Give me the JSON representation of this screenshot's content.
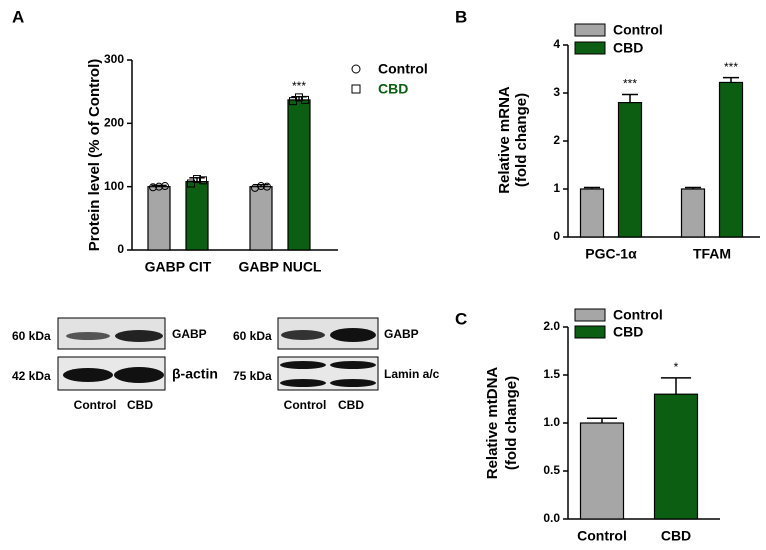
{
  "chart_data": [
    {
      "type": "bar",
      "panel": "A",
      "ylabel": [
        "Protein level (% of Control)"
      ],
      "categories": [
        "GABP CIT",
        "GABP NUCL"
      ],
      "series": [
        {
          "name": "Control",
          "color": "#a6a6a6",
          "marker": "circle",
          "values": [
            100,
            100
          ],
          "errors": [
            2,
            3
          ],
          "points": [
            [
              99,
              100,
              101
            ],
            [
              98,
              101,
              100
            ]
          ]
        },
        {
          "name": "CBD",
          "color": "#0b5e12",
          "marker": "square",
          "values": [
            108,
            237
          ],
          "errors": [
            6,
            5
          ],
          "points": [
            [
              105,
              112,
              110
            ],
            [
              235,
              241,
              237
            ]
          ],
          "significance": [
            null,
            "***"
          ]
        }
      ],
      "ylim": [
        0,
        300
      ],
      "yticks": [
        0,
        100,
        200,
        300
      ],
      "legend": "right"
    },
    {
      "type": "bar",
      "panel": "B",
      "ylabel": [
        "Relative mRNA",
        "(fold change)"
      ],
      "categories": [
        "PGC-1α",
        "TFAM"
      ],
      "series": [
        {
          "name": "Control",
          "color": "#a6a6a6",
          "values": [
            1,
            1
          ],
          "errors": [
            0.03,
            0.03
          ]
        },
        {
          "name": "CBD",
          "color": "#0b5e12",
          "values": [
            2.8,
            3.22
          ],
          "errors": [
            0.17,
            0.1
          ],
          "significance": [
            "***",
            "***"
          ]
        }
      ],
      "ylim": [
        0,
        4
      ],
      "yticks": [
        0,
        1,
        2,
        3,
        4
      ],
      "legend": "top"
    },
    {
      "type": "bar",
      "panel": "C",
      "ylabel": [
        "Relative mtDNA",
        "(fold change)"
      ],
      "categories": [
        "Control",
        "CBD"
      ],
      "series": [
        {
          "name": null,
          "colors": [
            "#a6a6a6",
            "#0b5e12"
          ],
          "values": [
            1.0,
            1.3
          ],
          "errors": [
            0.05,
            0.17
          ],
          "significance": [
            null,
            "*"
          ]
        }
      ],
      "ylim": [
        0,
        2
      ],
      "yticks": [
        {
          "value": 0,
          "label": "0.0"
        },
        {
          "value": 0.5,
          "label": "0.5"
        },
        {
          "value": 1,
          "label": "1.0"
        },
        {
          "value": 1.5,
          "label": "1.5"
        },
        {
          "value": 2,
          "label": "2.0"
        }
      ],
      "legend": "top"
    }
  ],
  "blots": [
    {
      "bands": [
        {
          "kda": "60 kDa",
          "protein": "GABP"
        },
        {
          "kda": "42 kDa",
          "protein": "β-actin"
        }
      ],
      "lanes": [
        "Control",
        "CBD"
      ]
    },
    {
      "bands": [
        {
          "kda": "60 kDa",
          "protein": "GABP"
        },
        {
          "kda": "75 kDa",
          "protein": "Lamin a/c"
        }
      ],
      "lanes": [
        "Control",
        "CBD"
      ]
    }
  ]
}
